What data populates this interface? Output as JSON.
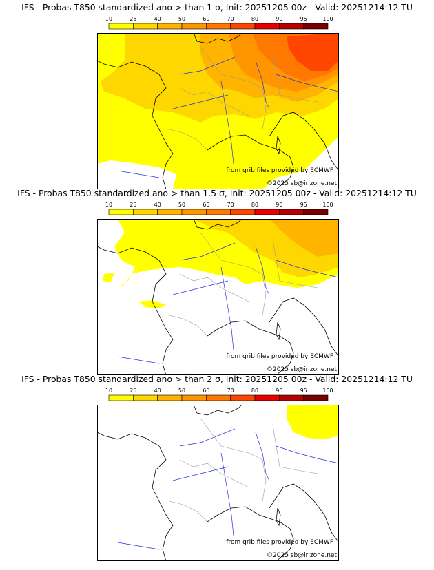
{
  "panels": [
    {
      "title": "IFS - Probas T850  standardized ano > than 1 σ, Init: 20251205 00z - Valid: 20251214:12 TU",
      "credit_source": "from grib files provided by ECMWF",
      "credit_copyright": "©2025 sb@irizone.net",
      "threshold_sigma": 1
    },
    {
      "title": "IFS - Probas T850  standardized ano > than 1.5 σ, Init: 20251205 00z - Valid: 20251214:12 TU",
      "credit_source": "from grib files provided by ECMWF",
      "credit_copyright": "©2025 sb@irizone.net",
      "threshold_sigma": 1.5
    },
    {
      "title": "IFS - Probas T850  standardized ano > than 2 σ, Init: 20251205 00z - Valid: 20251214:12 TU",
      "credit_source": "from grib files provided by ECMWF",
      "credit_copyright": "©2025 sb@irizone.net",
      "threshold_sigma": 2
    }
  ],
  "colorbar": {
    "ticks": [
      "10",
      "25",
      "40",
      "50",
      "60",
      "70",
      "80",
      "90",
      "95",
      "100"
    ],
    "colors": [
      "#ffff00",
      "#ffd700",
      "#ffb400",
      "#ff9600",
      "#ff7800",
      "#ff4600",
      "#e60000",
      "#b40000",
      "#780000"
    ]
  },
  "map_colors": {
    "p10": "#ffff00",
    "p25": "#ffd700",
    "p40": "#ffb400",
    "p50": "#ff9600",
    "p60": "#ff7800",
    "p70": "#ff4600",
    "coast": "#000000",
    "rivers": "#2233dd",
    "borders": "#999999"
  }
}
